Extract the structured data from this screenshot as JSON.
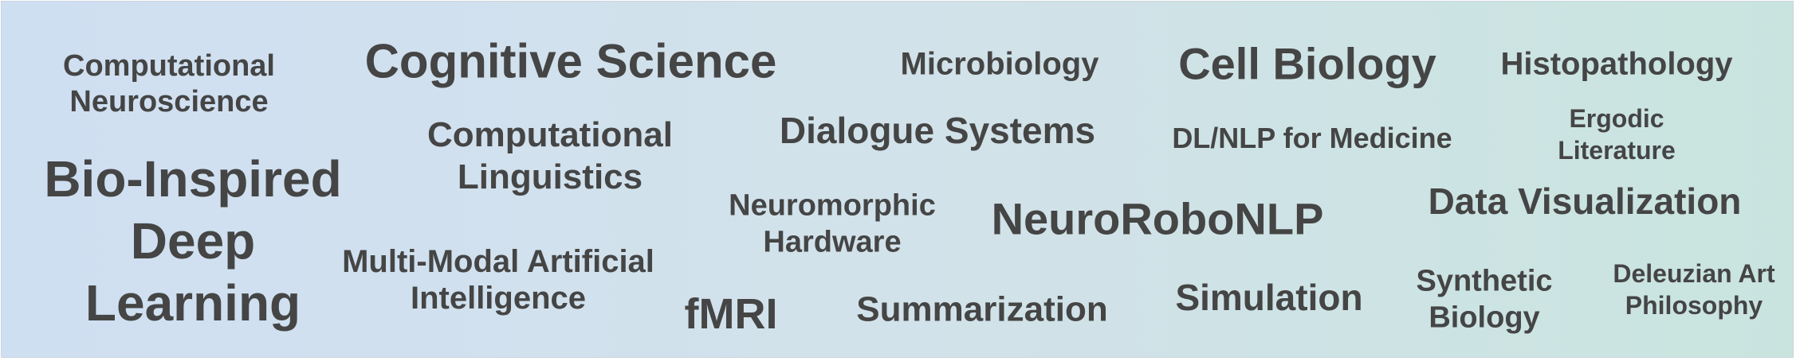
{
  "cloud": {
    "terms": [
      {
        "lines": [
          "Computational",
          "Neuroscience"
        ]
      },
      {
        "lines": [
          "Cognitive Science"
        ]
      },
      {
        "lines": [
          "Microbiology"
        ]
      },
      {
        "lines": [
          "Cell Biology"
        ]
      },
      {
        "lines": [
          "Histopathology"
        ]
      },
      {
        "lines": [
          "Bio-Inspired",
          "Deep",
          "Learning"
        ]
      },
      {
        "lines": [
          "Computational",
          "Linguistics"
        ]
      },
      {
        "lines": [
          "Dialogue Systems"
        ]
      },
      {
        "lines": [
          "DL/NLP for Medicine"
        ]
      },
      {
        "lines": [
          "Ergodic",
          "Literature"
        ]
      },
      {
        "lines": [
          "Neuromorphic",
          "Hardware"
        ]
      },
      {
        "lines": [
          "NeuroRoboNLP"
        ]
      },
      {
        "lines": [
          "Data Visualization"
        ]
      },
      {
        "lines": [
          "Multi-Modal Artificial",
          "Intelligence"
        ]
      },
      {
        "lines": [
          "fMRI"
        ]
      },
      {
        "lines": [
          "Summarization"
        ]
      },
      {
        "lines": [
          "Simulation"
        ]
      },
      {
        "lines": [
          "Synthetic",
          "Biology"
        ]
      },
      {
        "lines": [
          "Deleuzian Art",
          "Philosophy"
        ]
      }
    ]
  }
}
